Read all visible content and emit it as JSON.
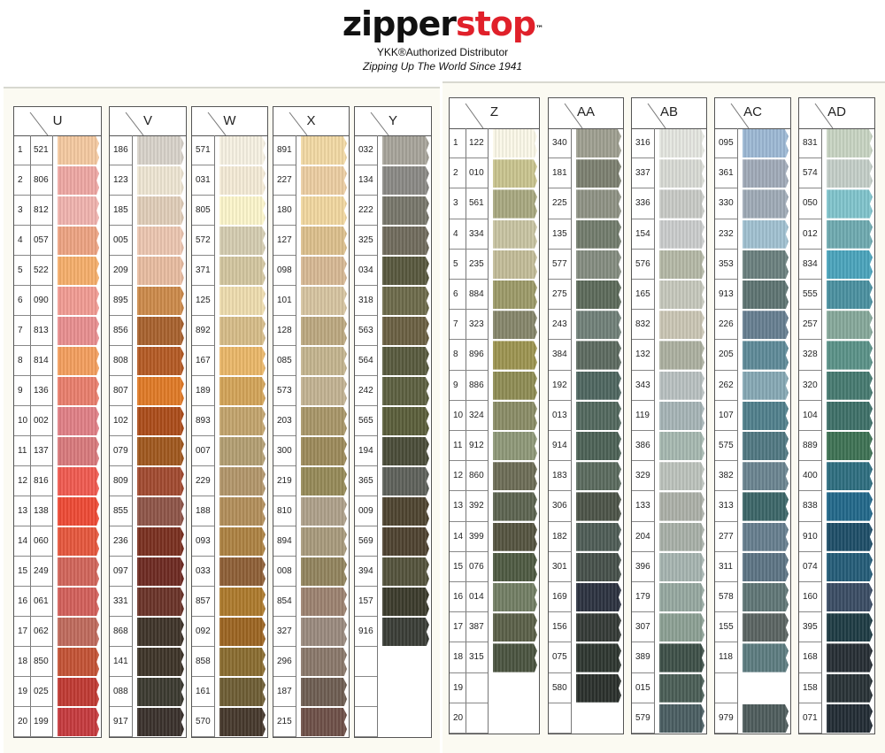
{
  "brand": {
    "logo_part1": "zipper",
    "logo_part2": "stop",
    "trademark": "™",
    "tagline1": "YKK®Authorized Distributor",
    "tagline2": "Zipping Up The World Since 1941",
    "logo_colors": {
      "zipper": "#111111",
      "stop": "#e0202a"
    }
  },
  "left_card": {
    "columns": [
      {
        "header": "U",
        "show_index": true,
        "rows": [
          {
            "n": "1",
            "code": "521",
            "color": "#f4c9a0"
          },
          {
            "n": "2",
            "code": "806",
            "color": "#eea7a3"
          },
          {
            "n": "3",
            "code": "812",
            "color": "#f0b3ae"
          },
          {
            "n": "4",
            "code": "057",
            "color": "#eda382"
          },
          {
            "n": "5",
            "code": "522",
            "color": "#f5ae6a"
          },
          {
            "n": "6",
            "code": "090",
            "color": "#f19b93"
          },
          {
            "n": "7",
            "code": "813",
            "color": "#e88e8f"
          },
          {
            "n": "8",
            "code": "814",
            "color": "#f39e5e"
          },
          {
            "n": "9",
            "code": "136",
            "color": "#e97e6c"
          },
          {
            "n": "10",
            "code": "002",
            "color": "#e07f86"
          },
          {
            "n": "11",
            "code": "137",
            "color": "#d8797c"
          },
          {
            "n": "12",
            "code": "816",
            "color": "#f05a50"
          },
          {
            "n": "13",
            "code": "138",
            "color": "#ee4a35"
          },
          {
            "n": "14",
            "code": "060",
            "color": "#e6573d"
          },
          {
            "n": "15",
            "code": "249",
            "color": "#d1655a"
          },
          {
            "n": "16",
            "code": "061",
            "color": "#d2605a"
          },
          {
            "n": "17",
            "code": "062",
            "color": "#bf6a5c"
          },
          {
            "n": "18",
            "code": "850",
            "color": "#c35335"
          },
          {
            "n": "19",
            "code": "025",
            "color": "#c03a33"
          },
          {
            "n": "20",
            "code": "199",
            "color": "#c53a3e"
          }
        ]
      },
      {
        "header": "V",
        "rows": [
          {
            "code": "186",
            "color": "#d8d2ca"
          },
          {
            "code": "123",
            "color": "#eee5d2"
          },
          {
            "code": "185",
            "color": "#e0cdb8"
          },
          {
            "code": "005",
            "color": "#ecc6b0"
          },
          {
            "code": "209",
            "color": "#e8bca0"
          },
          {
            "code": "895",
            "color": "#cc8a4a"
          },
          {
            "code": "856",
            "color": "#a8622e"
          },
          {
            "code": "808",
            "color": "#b45a24"
          },
          {
            "code": "807",
            "color": "#e07a26"
          },
          {
            "code": "102",
            "color": "#ac4c1a"
          },
          {
            "code": "079",
            "color": "#a0581e"
          },
          {
            "code": "809",
            "color": "#a24a30"
          },
          {
            "code": "855",
            "color": "#8e5548"
          },
          {
            "code": "236",
            "color": "#7a3020"
          },
          {
            "code": "097",
            "color": "#6e2a22"
          },
          {
            "code": "331",
            "color": "#6a3328"
          },
          {
            "code": "868",
            "color": "#3f3429"
          },
          {
            "code": "141",
            "color": "#3e3428"
          },
          {
            "code": "088",
            "color": "#3c3a30"
          },
          {
            "code": "917",
            "color": "#3a312c"
          }
        ]
      },
      {
        "header": "W",
        "rows": [
          {
            "code": "571",
            "color": "#f6f1e2"
          },
          {
            "code": "031",
            "color": "#f4ebd6"
          },
          {
            "code": "805",
            "color": "#fcf5cb"
          },
          {
            "code": "572",
            "color": "#d4ccb0"
          },
          {
            "code": "371",
            "color": "#d2c69f"
          },
          {
            "code": "125",
            "color": "#eedcae"
          },
          {
            "code": "892",
            "color": "#d6bc88"
          },
          {
            "code": "167",
            "color": "#eab768"
          },
          {
            "code": "189",
            "color": "#d3a458"
          },
          {
            "code": "893",
            "color": "#c2a46c"
          },
          {
            "code": "007",
            "color": "#b39e72"
          },
          {
            "code": "229",
            "color": "#b2966a"
          },
          {
            "code": "188",
            "color": "#b28e5a"
          },
          {
            "code": "093",
            "color": "#ad8242"
          },
          {
            "code": "033",
            "color": "#8e5f36"
          },
          {
            "code": "857",
            "color": "#ad7a2c"
          },
          {
            "code": "092",
            "color": "#9c6522"
          },
          {
            "code": "858",
            "color": "#8a6c30"
          },
          {
            "code": "161",
            "color": "#6e5d34"
          },
          {
            "code": "570",
            "color": "#46382c"
          }
        ]
      },
      {
        "header": "X",
        "rows": [
          {
            "code": "891",
            "color": "#f2d9a4"
          },
          {
            "code": "227",
            "color": "#eccda2"
          },
          {
            "code": "180",
            "color": "#f1d79f"
          },
          {
            "code": "127",
            "color": "#dcbf8c"
          },
          {
            "code": "098",
            "color": "#d7b894"
          },
          {
            "code": "101",
            "color": "#d6c4a0"
          },
          {
            "code": "128",
            "color": "#bca880"
          },
          {
            "code": "085",
            "color": "#c4b48e"
          },
          {
            "code": "573",
            "color": "#c2b292"
          },
          {
            "code": "203",
            "color": "#a89668"
          },
          {
            "code": "300",
            "color": "#9c8a5a"
          },
          {
            "code": "219",
            "color": "#968a58"
          },
          {
            "code": "810",
            "color": "#aea08a"
          },
          {
            "code": "894",
            "color": "#a89a7c"
          },
          {
            "code": "008",
            "color": "#92845e"
          },
          {
            "code": "854",
            "color": "#9c8270"
          },
          {
            "code": "327",
            "color": "#9a8a7e"
          },
          {
            "code": "296",
            "color": "#8a786a"
          },
          {
            "code": "187",
            "color": "#6e5e52"
          },
          {
            "code": "215",
            "color": "#6e5048"
          }
        ]
      },
      {
        "header": "Y",
        "rows": [
          {
            "code": "032",
            "color": "#a7a49a"
          },
          {
            "code": "134",
            "color": "#8a8985"
          },
          {
            "code": "222",
            "color": "#77766a"
          },
          {
            "code": "325",
            "color": "#706b5c"
          },
          {
            "code": "034",
            "color": "#58583e"
          },
          {
            "code": "318",
            "color": "#6c6a4a"
          },
          {
            "code": "563",
            "color": "#6a6042"
          },
          {
            "code": "564",
            "color": "#585a3e"
          },
          {
            "code": "242",
            "color": "#5c6040"
          },
          {
            "code": "565",
            "color": "#5a5e3a"
          },
          {
            "code": "194",
            "color": "#4a4c38"
          },
          {
            "code": "365",
            "color": "#5e615a"
          },
          {
            "code": "009",
            "color": "#4e4430"
          },
          {
            "code": "569",
            "color": "#4e4230"
          },
          {
            "code": "394",
            "color": "#54533c"
          },
          {
            "code": "157",
            "color": "#3c3b2c"
          },
          {
            "code": "916",
            "color": "#3a3d36"
          },
          {
            "code": "",
            "color": null
          },
          {
            "code": "",
            "color": null
          },
          {
            "code": "",
            "color": null
          }
        ]
      }
    ]
  },
  "right_card": {
    "columns": [
      {
        "header": "Z",
        "show_index": true,
        "rows": [
          {
            "n": "1",
            "code": "122",
            "color": "#fbf8e8"
          },
          {
            "n": "2",
            "code": "010",
            "color": "#c9c48e"
          },
          {
            "n": "3",
            "code": "561",
            "color": "#a8a880"
          },
          {
            "n": "4",
            "code": "334",
            "color": "#c8c3a2"
          },
          {
            "n": "5",
            "code": "235",
            "color": "#c2bc98"
          },
          {
            "n": "6",
            "code": "884",
            "color": "#9c9a68"
          },
          {
            "n": "7",
            "code": "323",
            "color": "#86866a"
          },
          {
            "n": "8",
            "code": "896",
            "color": "#9c9450"
          },
          {
            "n": "9",
            "code": "886",
            "color": "#8e8c54"
          },
          {
            "n": "10",
            "code": "324",
            "color": "#8a8c66"
          },
          {
            "n": "11",
            "code": "912",
            "color": "#8e9878"
          },
          {
            "n": "12",
            "code": "860",
            "color": "#6c6c56"
          },
          {
            "n": "13",
            "code": "392",
            "color": "#5c6450"
          },
          {
            "n": "14",
            "code": "399",
            "color": "#555440"
          },
          {
            "n": "15",
            "code": "076",
            "color": "#4e5a42"
          },
          {
            "n": "16",
            "code": "014",
            "color": "#727e64"
          },
          {
            "n": "17",
            "code": "387",
            "color": "#5a6048"
          },
          {
            "n": "18",
            "code": "315",
            "color": "#4a5440"
          },
          {
            "n": "19",
            "code": "",
            "color": null
          },
          {
            "n": "20",
            "code": "",
            "color": null
          }
        ]
      },
      {
        "header": "AA",
        "rows": [
          {
            "code": "340",
            "color": "#9e9f90"
          },
          {
            "code": "181",
            "color": "#7c8070"
          },
          {
            "code": "225",
            "color": "#8e9284"
          },
          {
            "code": "135",
            "color": "#727c6c"
          },
          {
            "code": "577",
            "color": "#848c80"
          },
          {
            "code": "275",
            "color": "#5c6a5a"
          },
          {
            "code": "243",
            "color": "#708078"
          },
          {
            "code": "384",
            "color": "#5c6a60"
          },
          {
            "code": "192",
            "color": "#4e6660"
          },
          {
            "code": "013",
            "color": "#52685e"
          },
          {
            "code": "914",
            "color": "#4c6256"
          },
          {
            "code": "183",
            "color": "#5a6a5e"
          },
          {
            "code": "306",
            "color": "#4c5448"
          },
          {
            "code": "182",
            "color": "#4e5c56"
          },
          {
            "code": "301",
            "color": "#46504a"
          },
          {
            "code": "169",
            "color": "#2c3240"
          },
          {
            "code": "156",
            "color": "#343a36"
          },
          {
            "code": "075",
            "color": "#2e3630"
          },
          {
            "code": "580",
            "color": "#2a302c"
          },
          {
            "code": "",
            "color": null
          }
        ]
      },
      {
        "header": "AB",
        "rows": [
          {
            "code": "316",
            "color": "#e4e6e0"
          },
          {
            "code": "337",
            "color": "#d8dad4"
          },
          {
            "code": "336",
            "color": "#c8cac6"
          },
          {
            "code": "154",
            "color": "#cacccc"
          },
          {
            "code": "576",
            "color": "#b4b8a6"
          },
          {
            "code": "165",
            "color": "#c6c8bc"
          },
          {
            "code": "832",
            "color": "#cac6b4"
          },
          {
            "code": "132",
            "color": "#acb0a0"
          },
          {
            "code": "343",
            "color": "#b8c0c0"
          },
          {
            "code": "119",
            "color": "#a6b4b6"
          },
          {
            "code": "386",
            "color": "#a6b8b0"
          },
          {
            "code": "329",
            "color": "#bcc2bc"
          },
          {
            "code": "133",
            "color": "#acb0a8"
          },
          {
            "code": "204",
            "color": "#a8b0a8"
          },
          {
            "code": "396",
            "color": "#a6b4b0"
          },
          {
            "code": "179",
            "color": "#96a8a0"
          },
          {
            "code": "307",
            "color": "#8ca094"
          },
          {
            "code": "389",
            "color": "#3e5048"
          },
          {
            "code": "015",
            "color": "#4a5e56"
          },
          {
            "code": "579",
            "color": "#4a5e62"
          }
        ]
      },
      {
        "header": "AC",
        "rows": [
          {
            "code": "095",
            "color": "#9cb8d4"
          },
          {
            "code": "361",
            "color": "#a0aab8"
          },
          {
            "code": "330",
            "color": "#9eaab6"
          },
          {
            "code": "232",
            "color": "#a0c0d0"
          },
          {
            "code": "353",
            "color": "#6a807e"
          },
          {
            "code": "913",
            "color": "#5e7472"
          },
          {
            "code": "226",
            "color": "#667e90"
          },
          {
            "code": "205",
            "color": "#5e8a98"
          },
          {
            "code": "262",
            "color": "#86a8b4"
          },
          {
            "code": "107",
            "color": "#50808c"
          },
          {
            "code": "575",
            "color": "#507882"
          },
          {
            "code": "382",
            "color": "#6a8490"
          },
          {
            "code": "313",
            "color": "#3c6668"
          },
          {
            "code": "277",
            "color": "#667e8e"
          },
          {
            "code": "311",
            "color": "#5c7484"
          },
          {
            "code": "578",
            "color": "#607676"
          },
          {
            "code": "155",
            "color": "#5a6462"
          },
          {
            "code": "118",
            "color": "#5c7c80"
          },
          {
            "code": "",
            "color": null
          },
          {
            "code": "979",
            "color": "#4e5c5c"
          }
        ]
      },
      {
        "header": "AD",
        "rows": [
          {
            "code": "831",
            "color": "#c8d4c2"
          },
          {
            "code": "574",
            "color": "#c4cec8"
          },
          {
            "code": "050",
            "color": "#80c4cc"
          },
          {
            "code": "012",
            "color": "#6eaab0"
          },
          {
            "code": "834",
            "color": "#4aa4bc"
          },
          {
            "code": "555",
            "color": "#4a90a0"
          },
          {
            "code": "257",
            "color": "#86a89a"
          },
          {
            "code": "328",
            "color": "#5a9288"
          },
          {
            "code": "320",
            "color": "#467a70"
          },
          {
            "code": "104",
            "color": "#3e7068"
          },
          {
            "code": "889",
            "color": "#3e7254"
          },
          {
            "code": "400",
            "color": "#2e6e80"
          },
          {
            "code": "838",
            "color": "#22688a"
          },
          {
            "code": "910",
            "color": "#1e4e68"
          },
          {
            "code": "074",
            "color": "#245c78"
          },
          {
            "code": "160",
            "color": "#3a4c64"
          },
          {
            "code": "395",
            "color": "#1e3c44"
          },
          {
            "code": "168",
            "color": "#262e34"
          },
          {
            "code": "158",
            "color": "#283236"
          },
          {
            "code": "071",
            "color": "#222c34"
          }
        ]
      }
    ]
  }
}
